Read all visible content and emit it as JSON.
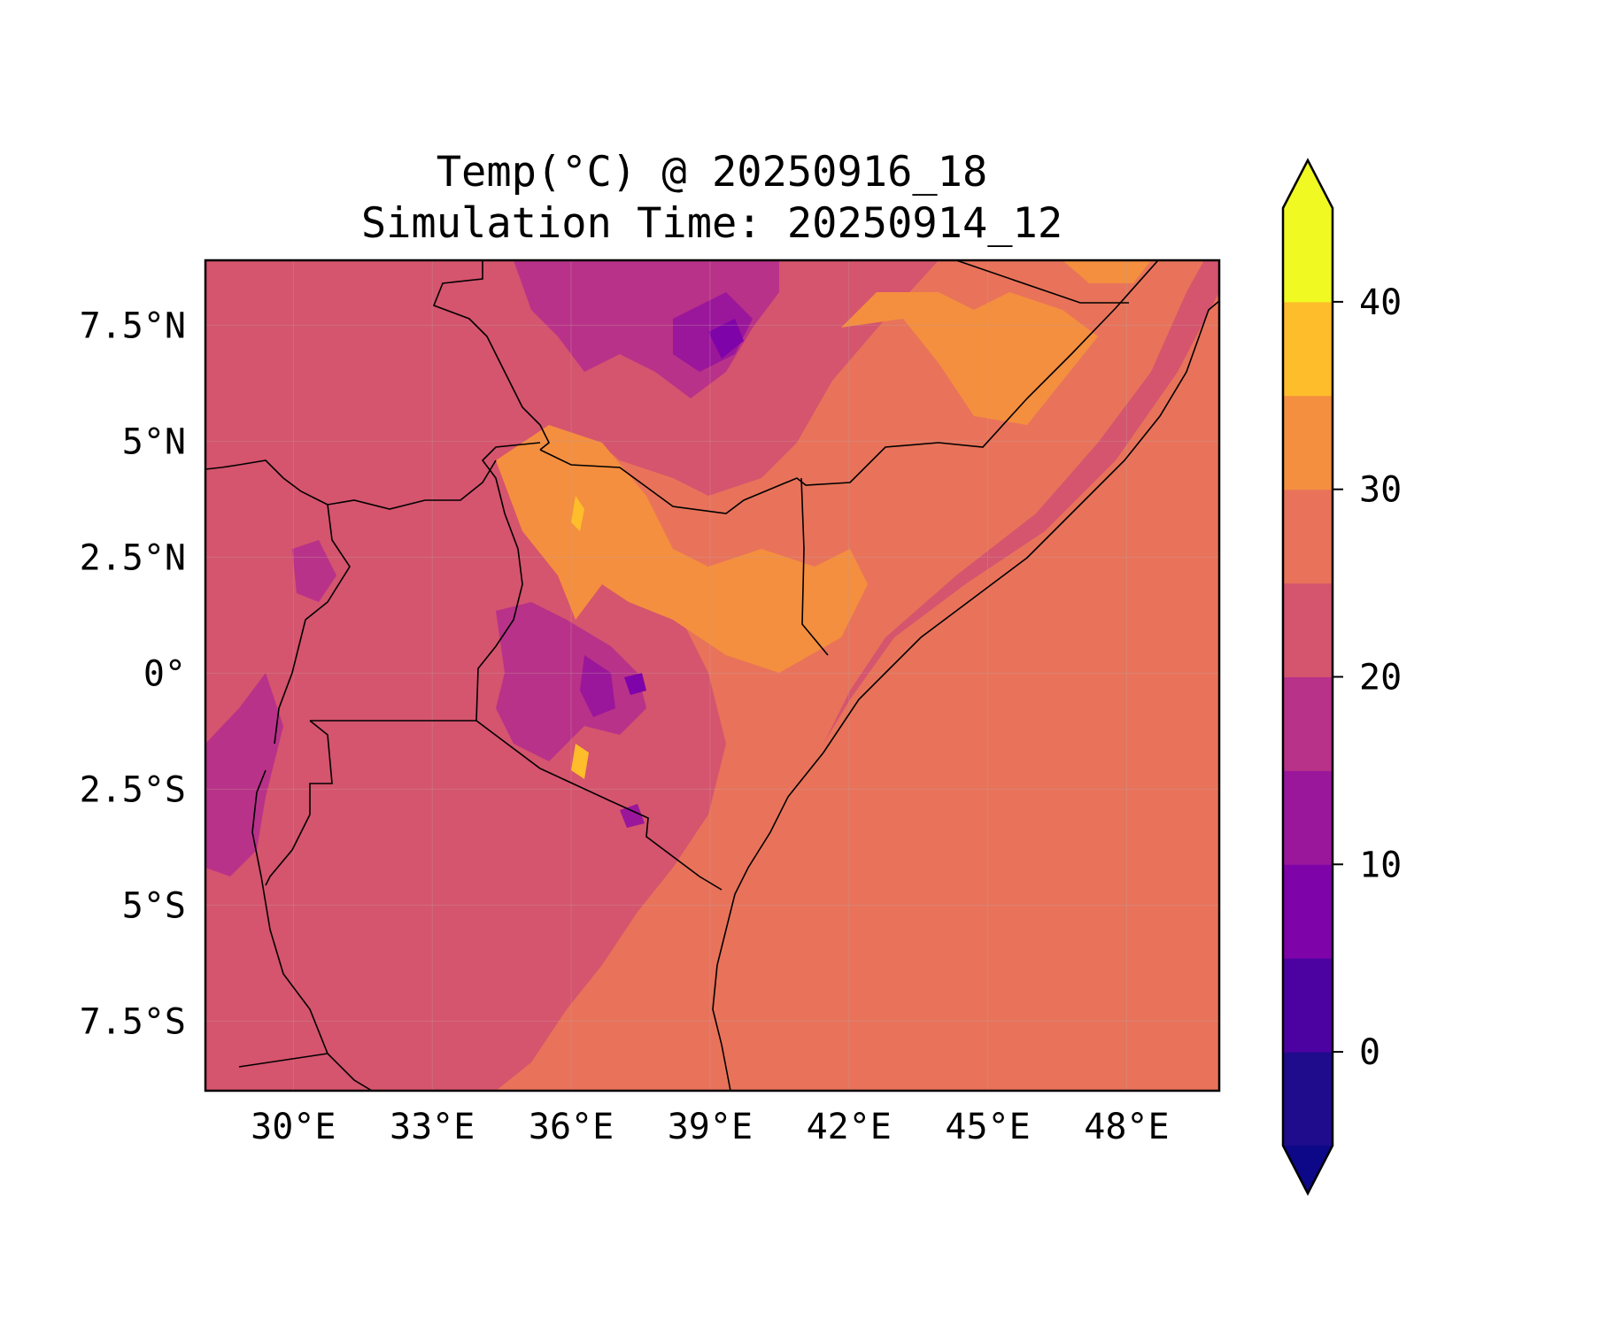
{
  "title": {
    "line1": "Temp(°C) @ 20250916_18",
    "line2": "Simulation Time: 20250914_12"
  },
  "map": {
    "lon_range": [
      28.1,
      50.0
    ],
    "lat_range": [
      -9.0,
      8.9
    ],
    "lon_ticks": [
      {
        "value": 30,
        "label": "30°E"
      },
      {
        "value": 33,
        "label": "33°E"
      },
      {
        "value": 36,
        "label": "36°E"
      },
      {
        "value": 39,
        "label": "39°E"
      },
      {
        "value": 42,
        "label": "42°E"
      },
      {
        "value": 45,
        "label": "45°E"
      },
      {
        "value": 48,
        "label": "48°E"
      }
    ],
    "lat_ticks": [
      {
        "value": 7.5,
        "label": "7.5°N"
      },
      {
        "value": 5,
        "label": "5°N"
      },
      {
        "value": 2.5,
        "label": "2.5°N"
      },
      {
        "value": 0,
        "label": "0°"
      },
      {
        "value": -2.5,
        "label": "2.5°S"
      },
      {
        "value": -5,
        "label": "5°S"
      },
      {
        "value": -7.5,
        "label": "7.5°S"
      }
    ],
    "gridlines": true,
    "colors": {
      "ocean": "#e8735a",
      "c20_25": "#d5546e",
      "c15_20": "#b83289",
      "c10_15": "#9a179b",
      "c5_10": "#7e03a8",
      "c30_35": "#f48f3f",
      "c35_40": "#febd2a"
    }
  },
  "colorbar": {
    "levels": [
      -5,
      0,
      5,
      10,
      15,
      20,
      25,
      30,
      35,
      40,
      45
    ],
    "colors": [
      "#1e0c8c",
      "#4c02a1",
      "#7e03a8",
      "#9a179b",
      "#b83289",
      "#d5546e",
      "#e8735a",
      "#f48f3f",
      "#febd2a",
      "#f0f921"
    ],
    "under_color": "#0d0887",
    "over_color": "#f0f921",
    "extend": "both",
    "ticks": [
      {
        "value": 0,
        "label": "0"
      },
      {
        "value": 10,
        "label": "10"
      },
      {
        "value": 20,
        "label": "20"
      },
      {
        "value": 30,
        "label": "30"
      },
      {
        "value": 40,
        "label": "40"
      }
    ]
  }
}
